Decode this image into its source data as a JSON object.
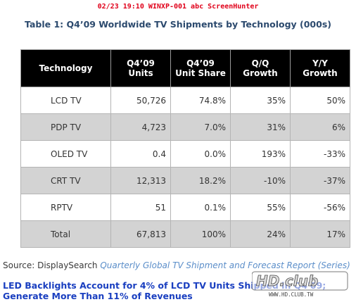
{
  "overlay_text": "02/23 19:10 WINXP-001 abc ScreenHunter",
  "title": "Table 1: Q4’09 Worldwide TV Shipments by Technology (000s)",
  "table": {
    "headers": {
      "technology": "Technology",
      "units_line1": "Q4’09",
      "units_line2": "Units",
      "share_line1": "Q4’09",
      "share_line2": "Unit Share",
      "qq_line1": "Q/Q",
      "qq_line2": "Growth",
      "yy_line1": "Y/Y",
      "yy_line2": "Growth"
    },
    "rows": [
      {
        "technology": "LCD TV",
        "units": "50,726",
        "share": "74.8%",
        "qq": "35%",
        "yy": "50%"
      },
      {
        "technology": "PDP TV",
        "units": "4,723",
        "share": "7.0%",
        "qq": "31%",
        "yy": "6%"
      },
      {
        "technology": "OLED TV",
        "units": "0.4",
        "share": "0.0%",
        "qq": "193%",
        "yy": "-33%"
      },
      {
        "technology": "CRT TV",
        "units": "12,313",
        "share": "18.2%",
        "qq": "-10%",
        "yy": "-37%"
      },
      {
        "technology": "RPTV",
        "units": "51",
        "share": "0.1%",
        "qq": "55%",
        "yy": "-56%"
      },
      {
        "technology": "Total",
        "units": "67,813",
        "share": "100%",
        "qq": "24%",
        "yy": "17%"
      }
    ]
  },
  "source": {
    "prefix": "Source: DisplaySearch",
    "link_text": "Quarterly Global TV Shipment and Forecast Report (Series)"
  },
  "headline": "LED Backlights Account for 4% of LCD TV Units Shipped in Q4'09; Generate More Than 11% of Revenues",
  "watermark": {
    "logo_text": "HD.club",
    "url_text": "WWW.HD.CLUB.TW"
  },
  "colors": {
    "header_bg": "#000000",
    "row_alt_bg": "#d3d3d3",
    "title_color": "#2c4a6e",
    "headline_color": "#1a3fc0",
    "link_color": "#5b8ec9",
    "overlay_color": "#e0001a"
  }
}
